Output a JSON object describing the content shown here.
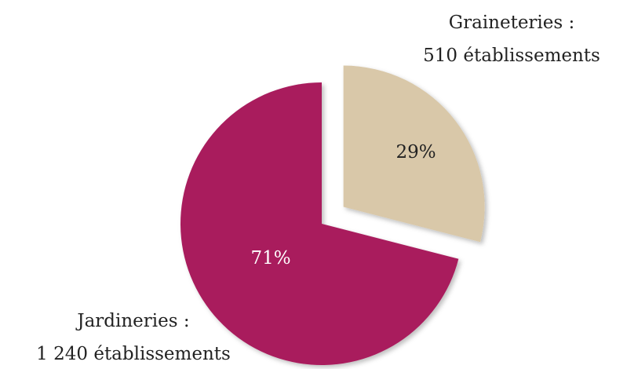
{
  "chart_data": {
    "type": "pie",
    "categories": [
      "Graineteries :",
      "Jardineries :"
    ],
    "category_details": [
      "510 établissements",
      "1 240 établissements"
    ],
    "values": [
      29,
      71
    ],
    "value_labels": [
      "29%",
      "71%"
    ],
    "colors": [
      "#d9c8a9",
      "#a91d5d"
    ],
    "exploded": [
      true,
      false
    ]
  }
}
